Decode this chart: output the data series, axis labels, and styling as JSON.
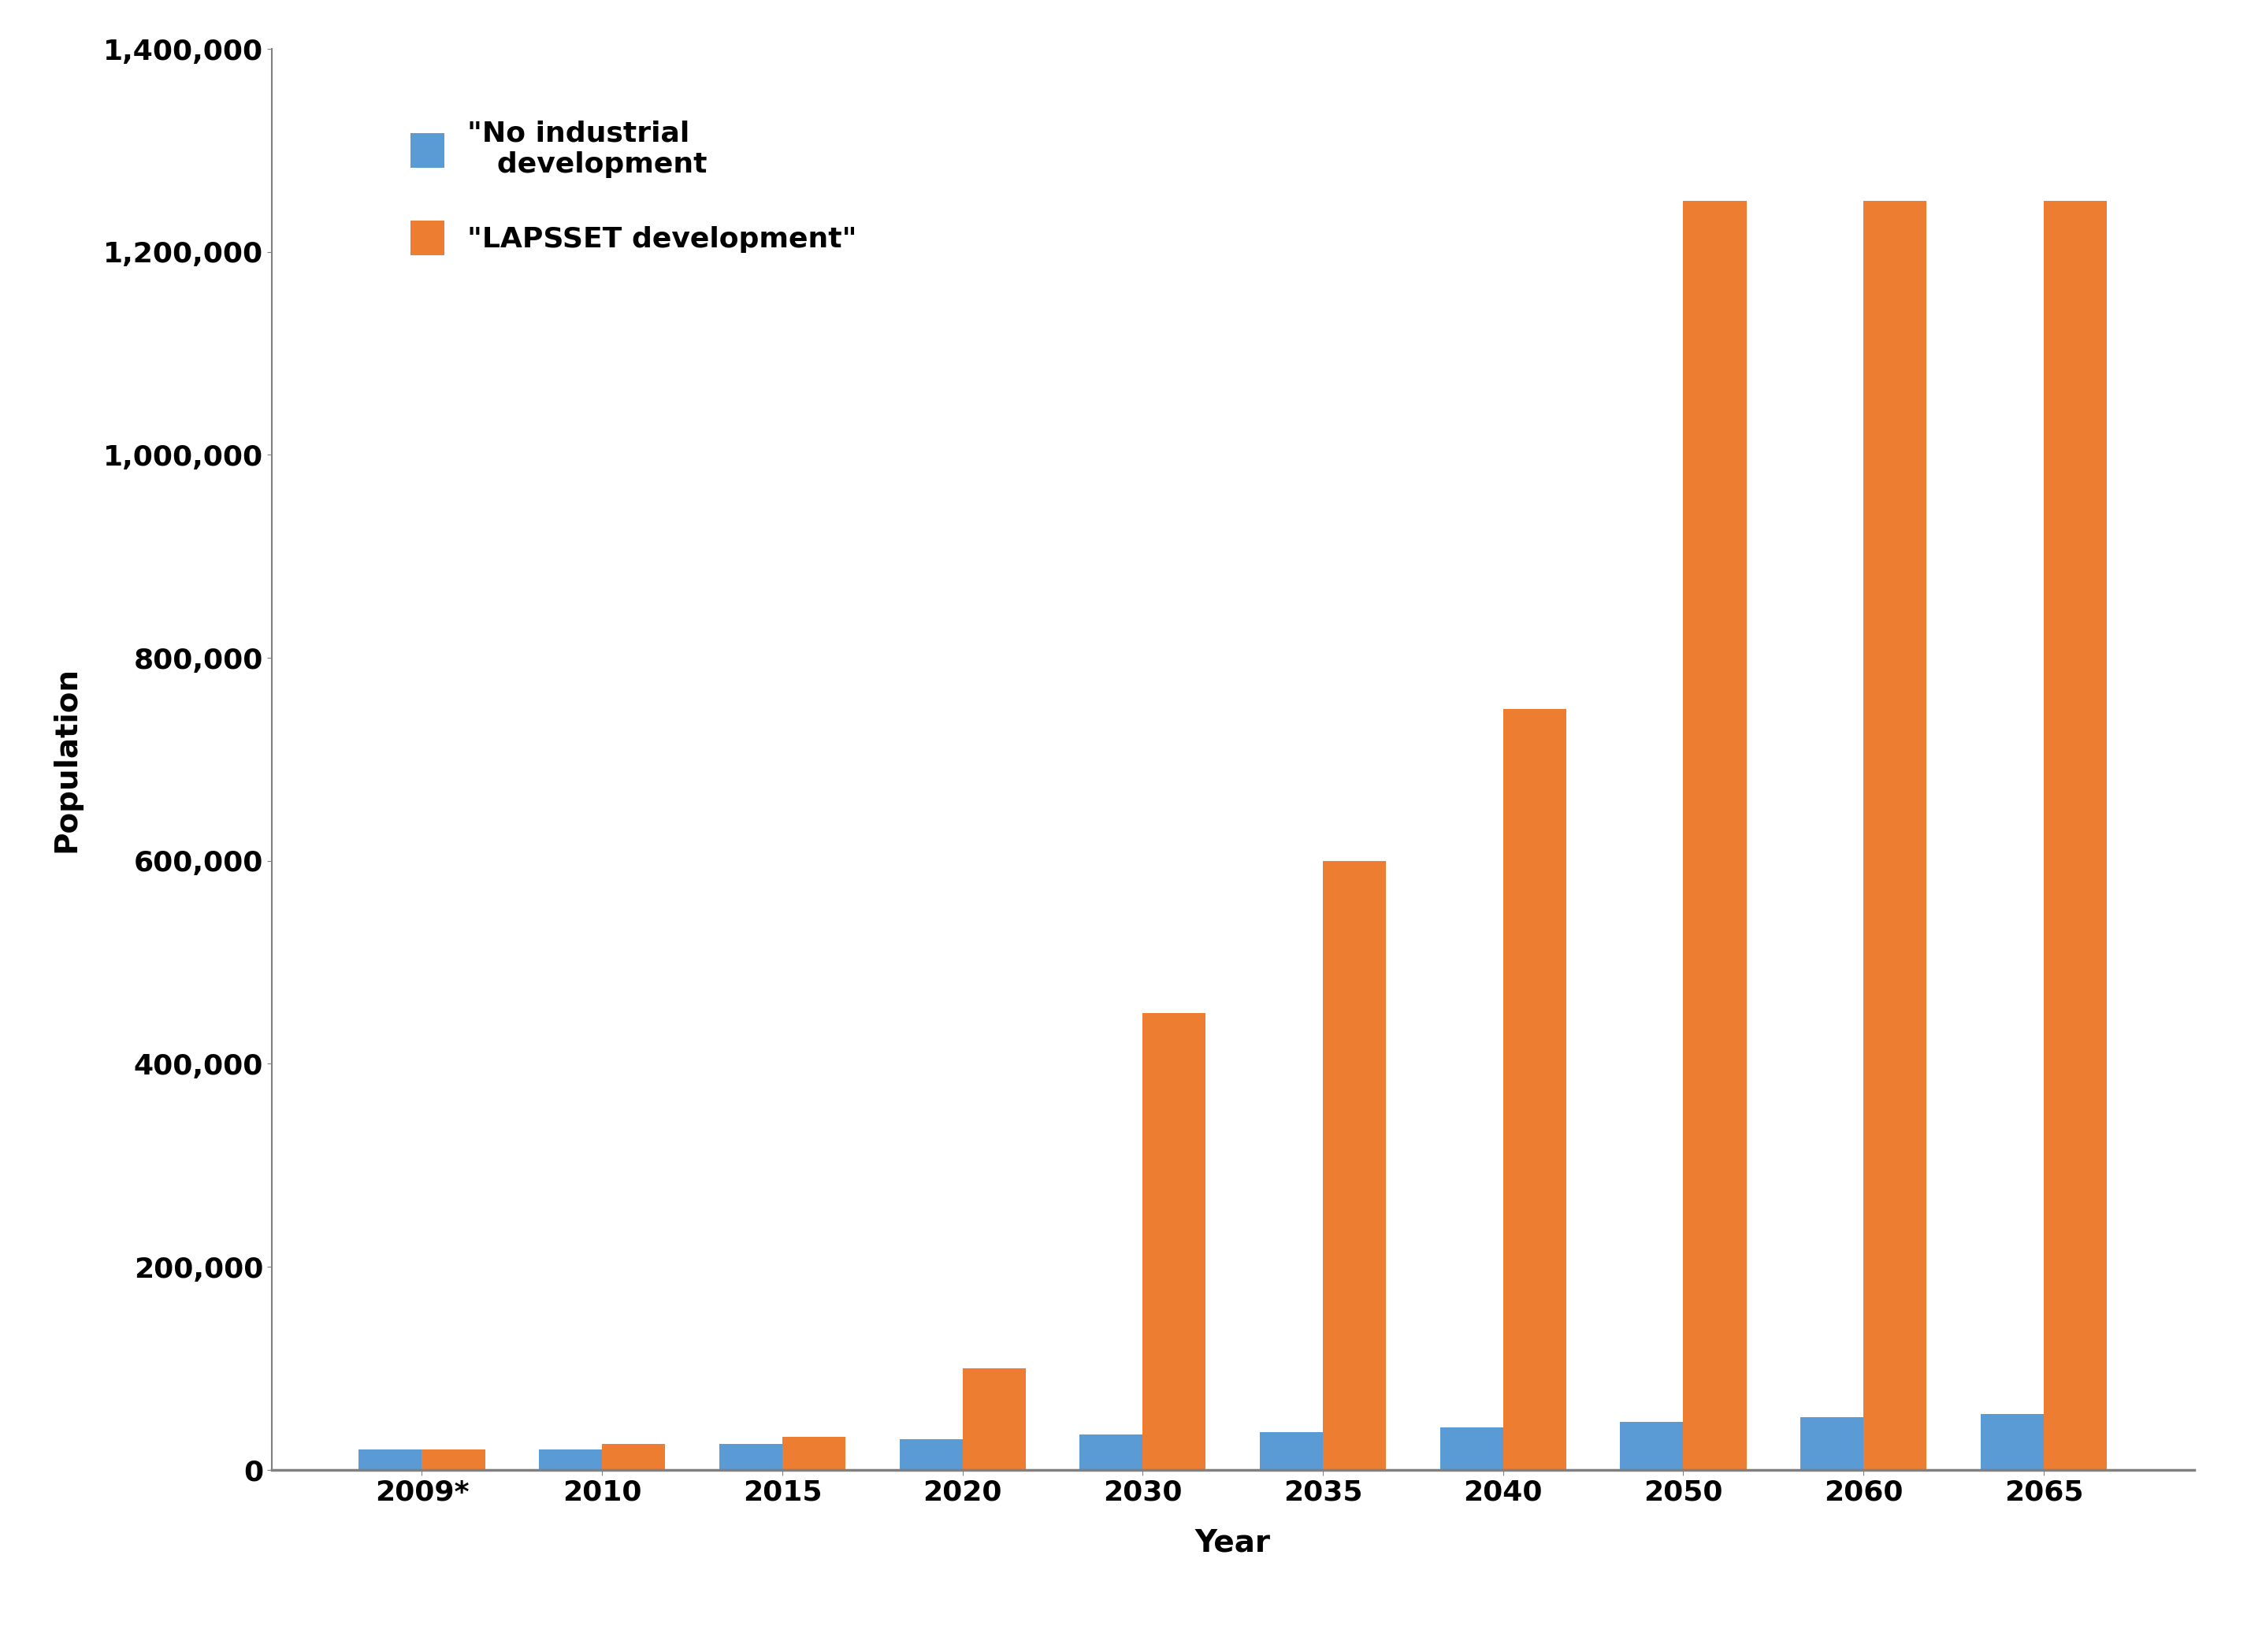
{
  "categories": [
    "2009*",
    "2010",
    "2015",
    "2020",
    "2030",
    "2035",
    "2040",
    "2050",
    "2060",
    "2065"
  ],
  "no_industrial": [
    20000,
    20000,
    25000,
    30000,
    35000,
    37000,
    42000,
    47000,
    52000,
    55000
  ],
  "lapsset": [
    20000,
    25000,
    32000,
    100000,
    450000,
    600000,
    750000,
    1250000,
    1250000,
    1250000
  ],
  "bar_color_blue": "#5B9BD5",
  "bar_color_orange": "#ED7D31",
  "ylabel": "Population",
  "xlabel": "Year",
  "ylim": [
    0,
    1400000
  ],
  "yticks": [
    0,
    200000,
    400000,
    600000,
    800000,
    1000000,
    1200000,
    1400000
  ],
  "legend_label_blue": "\"No industrial\n   development",
  "legend_label_orange": "\"LAPSSET development\"",
  "background_color": "#ffffff",
  "bar_width": 0.35,
  "ylabel_fontsize": 28,
  "xlabel_fontsize": 28,
  "tick_fontsize": 26,
  "legend_fontsize": 26,
  "spine_color": "#808080"
}
